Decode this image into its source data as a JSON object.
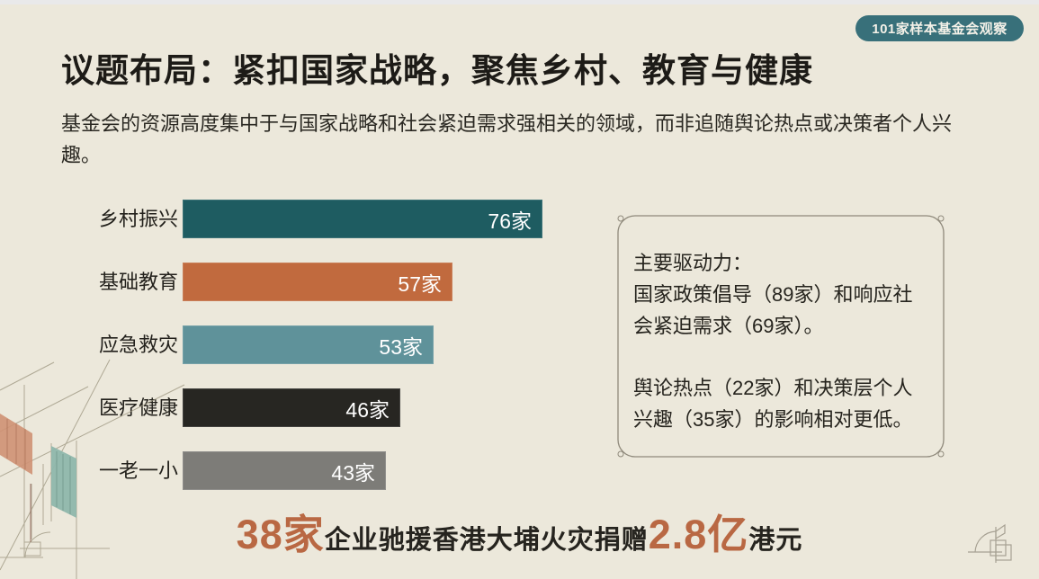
{
  "badge": {
    "label": "101家样本基金会观察"
  },
  "header": {
    "title": "议题布局：紧扣国家战略，聚焦乡村、教育与健康",
    "subtitle": "基金会的资源高度集中于与国家战略和社会紧迫需求强相关的领域，而非追随舆论热点或决策者个人兴趣。"
  },
  "chart_data": {
    "type": "bar",
    "orientation": "horizontal",
    "title": "",
    "xlabel": "",
    "ylabel": "",
    "categories": [
      "乡村振兴",
      "基础教育",
      "应急救灾",
      "医疗健康",
      "一老一小"
    ],
    "values": [
      76,
      57,
      53,
      46,
      43
    ],
    "value_labels": [
      "76家",
      "57家",
      "53家",
      "46家",
      "43家"
    ],
    "bar_colors": [
      "#1e5c61",
      "#c16a3e",
      "#5f929a",
      "#272622",
      "#7d7c78"
    ],
    "xlim": [
      0,
      76
    ],
    "grid": false,
    "value_label_position": "inside-end",
    "value_label_color": "#ffffff"
  },
  "callout_box": {
    "heading": "主要驱动力：",
    "paragraph1": "国家政策倡导（89家）和响应社会紧迫需求（69家）。",
    "paragraph2": "舆论热点（22家）和决策层个人兴趣（35家）的影响相对更低。"
  },
  "footnote": {
    "segments": [
      {
        "text": "38家",
        "emphasis": true
      },
      {
        "text": "企业驰援香港大埔火灾捐赠",
        "emphasis": false
      },
      {
        "text": "2.8亿",
        "emphasis": true
      },
      {
        "text": "港元",
        "emphasis": false
      }
    ]
  },
  "decorations": {
    "bottom_left": "architectural-sketch",
    "bottom_right": "frame-arc-emblem"
  },
  "colors": {
    "background": "#ece8db",
    "badge_background": "#38707a",
    "accent_orange": "#b96843",
    "title_text": "#1d1b17",
    "body_text": "#2a2822",
    "frame_border": "#8f897b"
  }
}
